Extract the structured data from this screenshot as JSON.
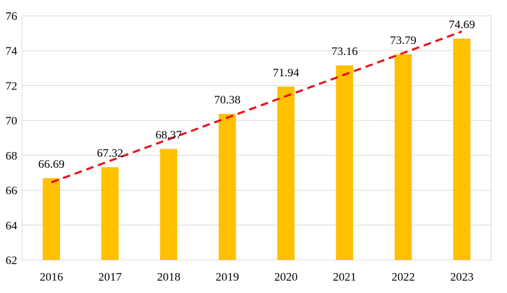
{
  "chart_data": {
    "type": "bar",
    "title": "",
    "xlabel": "",
    "ylabel": "",
    "categories": [
      "2016",
      "2017",
      "2018",
      "2019",
      "2020",
      "2021",
      "2022",
      "2023"
    ],
    "values": [
      66.69,
      67.32,
      68.37,
      70.38,
      71.94,
      73.16,
      73.79,
      74.69
    ],
    "data_labels": [
      "66.69",
      "67.32",
      "68.37",
      "70.38",
      "71.94",
      "73.16",
      "73.79",
      "74.69"
    ],
    "ylim": [
      62,
      76
    ],
    "yticks": [
      62,
      64,
      66,
      68,
      70,
      72,
      74,
      76
    ],
    "ytick_labels": [
      "62",
      "64",
      "66",
      "68",
      "70",
      "72",
      "74",
      "76"
    ],
    "grid": true,
    "legend": "none",
    "trendline": {
      "type": "linear",
      "style": "dashed",
      "start": [
        2016,
        66.45
      ],
      "end": [
        2023,
        75.1
      ]
    },
    "colors": {
      "bar": "#FFC000",
      "trendline": "#E8111A",
      "grid": "#D9D9D9",
      "frame": "#D9D9D9"
    }
  }
}
